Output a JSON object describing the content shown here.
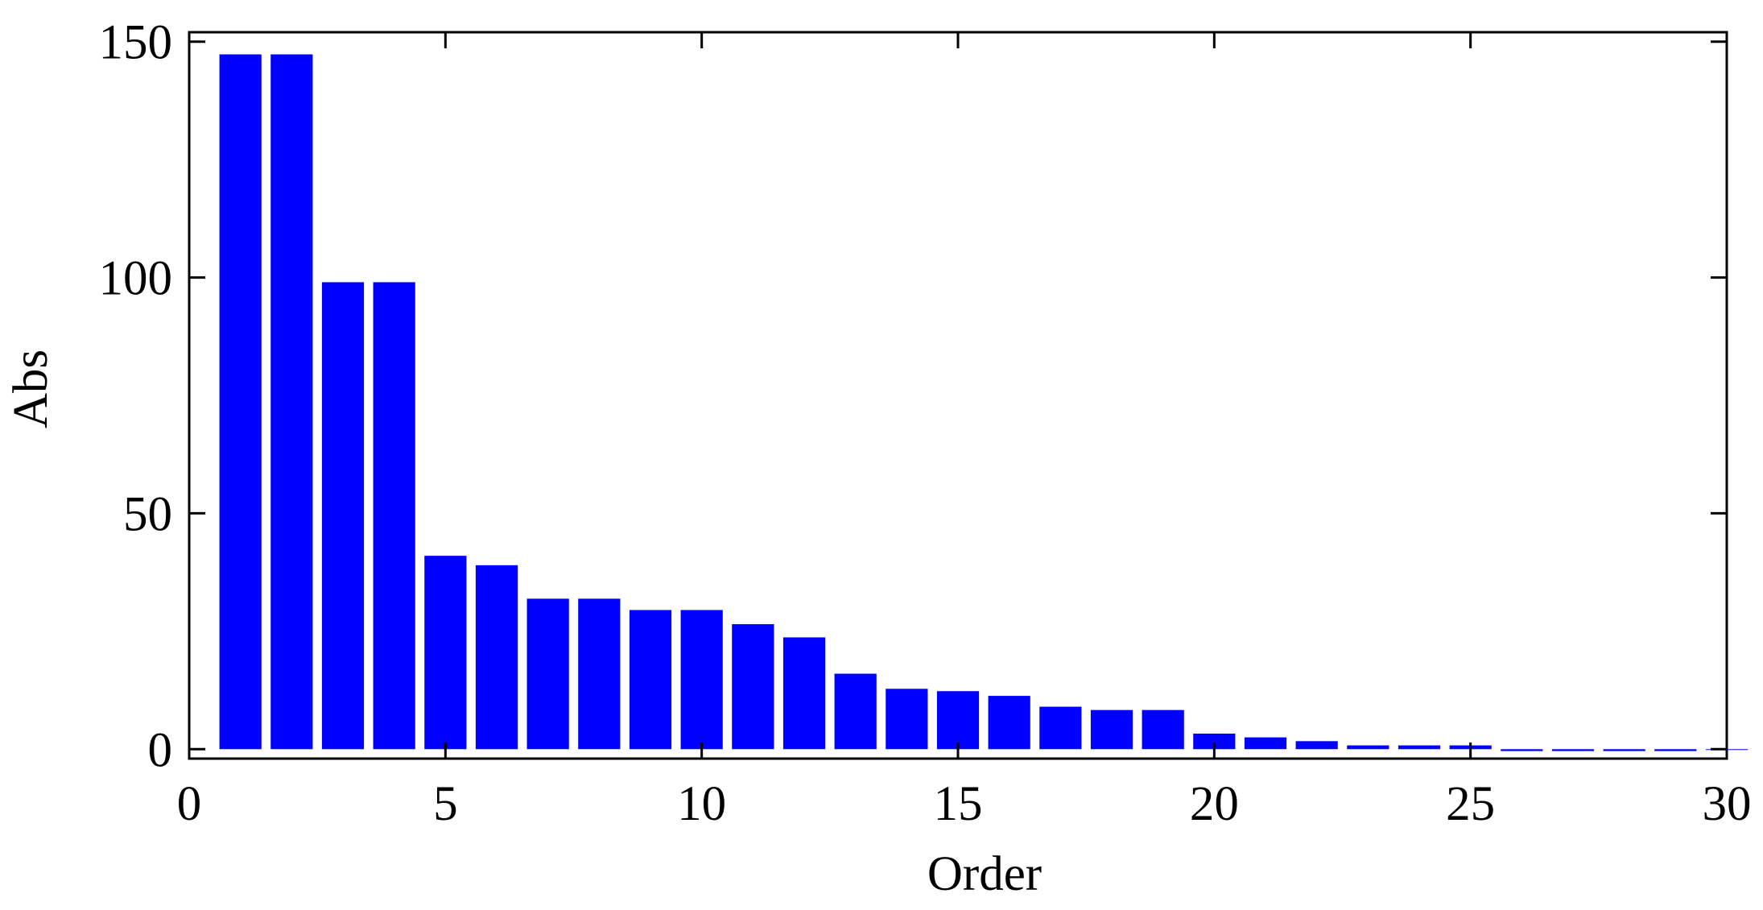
{
  "chart_data": {
    "type": "bar",
    "title": "",
    "xlabel": "Order",
    "ylabel": "Abs",
    "xlim": [
      0,
      30
    ],
    "ylim": [
      -2,
      152
    ],
    "xticks": [
      0,
      5,
      10,
      15,
      20,
      25,
      30
    ],
    "yticks": [
      0,
      50,
      100,
      150
    ],
    "grid": false,
    "bar_color": "#0000ff",
    "x": [
      1,
      2,
      3,
      4,
      5,
      6,
      7,
      8,
      9,
      10,
      11,
      12,
      13,
      14,
      15,
      16,
      17,
      18,
      19,
      20,
      21,
      22,
      23,
      24,
      25,
      26,
      27,
      28,
      29,
      30
    ],
    "values": [
      147.3,
      147.3,
      99.0,
      99.0,
      41.0,
      39.0,
      31.9,
      31.9,
      29.5,
      29.5,
      26.5,
      23.7,
      16.0,
      12.8,
      12.3,
      11.3,
      9.0,
      8.3,
      8.3,
      3.3,
      2.5,
      1.7,
      0.8,
      0.8,
      0.8,
      -0.4,
      -0.4,
      -0.4,
      -0.4,
      0.0
    ]
  }
}
